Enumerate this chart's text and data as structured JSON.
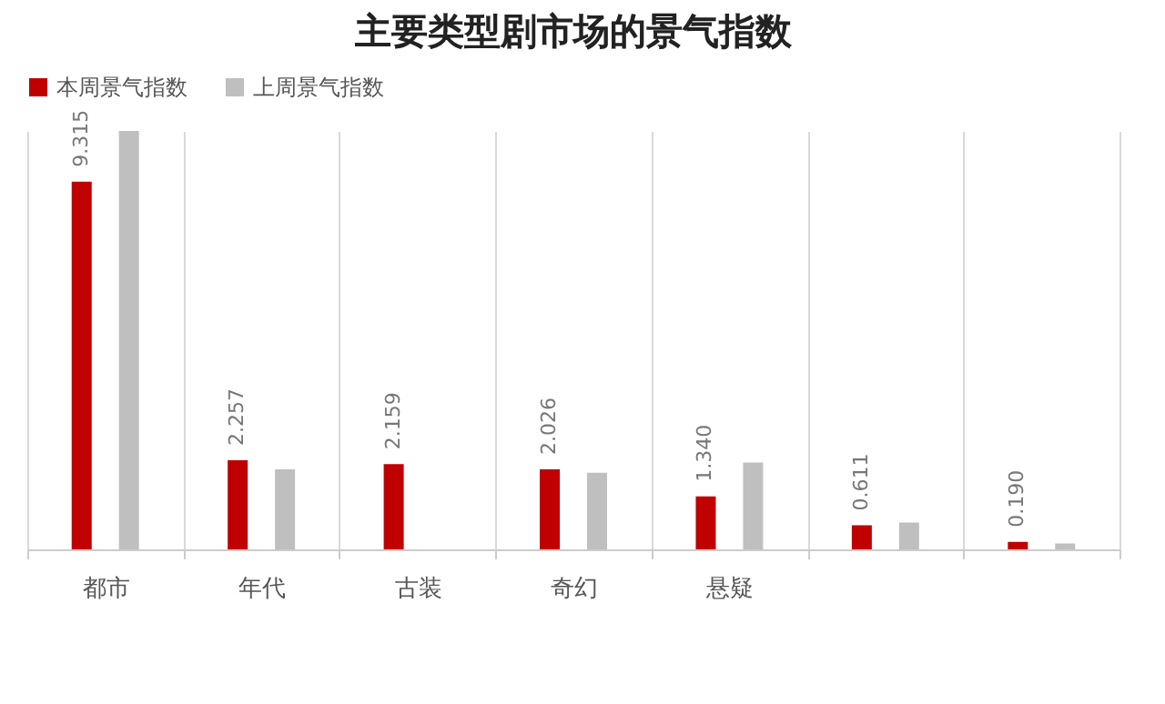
{
  "chart_data": {
    "type": "bar",
    "title": "主要类型剧市场的景气指数",
    "categories": [
      "都市",
      "年代",
      "古装",
      "奇幻",
      "悬疑",
      null,
      null
    ],
    "series": [
      {
        "name": "本周景气指数",
        "color": "#c00000",
        "values": [
          9.315,
          2.257,
          2.159,
          2.026,
          1.34,
          0.611,
          0.19
        ],
        "value_labels": [
          "9.315",
          "2.257",
          "2.159",
          "2.026",
          "1.340",
          "0.611",
          "0.190"
        ]
      },
      {
        "name": "上周景气指数",
        "color": "#bfbfbf",
        "values": [
          10.6,
          2.03,
          null,
          1.94,
          2.2,
          0.68,
          0.15
        ]
      }
    ],
    "grid": "x",
    "legend": "top"
  }
}
